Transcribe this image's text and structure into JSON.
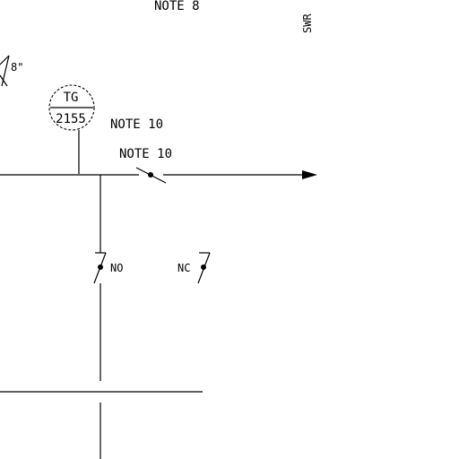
{
  "labels": {
    "top_note": "NOTE 8",
    "side_label": "SWR",
    "angle_label": "8\"",
    "tag_top": "TG",
    "tag_bottom": "2155",
    "note_right_circle": "NOTE 10",
    "note_switch": "NOTE 10",
    "switch_no_left": "NO",
    "switch_nc_right": "NC"
  }
}
